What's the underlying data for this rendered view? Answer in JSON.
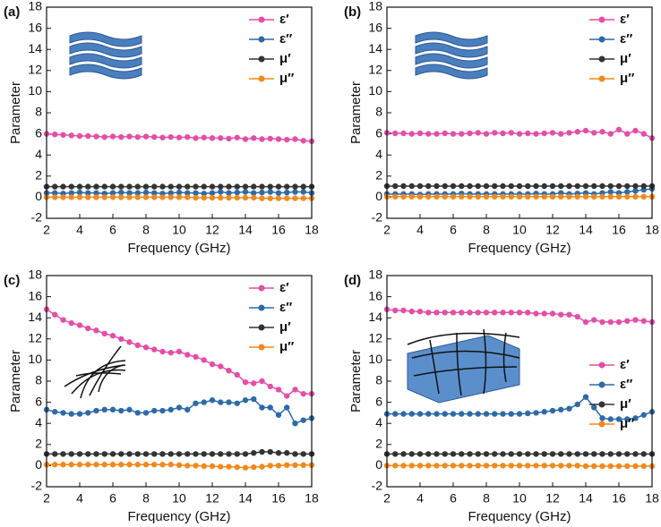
{
  "chart_data": [
    {
      "type": "line",
      "title": "(a)",
      "xlabel": "Frequency (GHz)",
      "ylabel": "Parameter",
      "xlim": [
        2,
        18
      ],
      "xticks": [
        2,
        4,
        6,
        8,
        10,
        12,
        14,
        16,
        18
      ],
      "ylim": [
        -2,
        18
      ],
      "yticks": [
        -2,
        0,
        2,
        4,
        6,
        8,
        10,
        12,
        14,
        16,
        18
      ],
      "legend": "upper right",
      "x": [
        2,
        2.5,
        3,
        3.5,
        4,
        4.5,
        5,
        5.5,
        6,
        6.5,
        7,
        7.5,
        8,
        8.5,
        9,
        9.5,
        10,
        10.5,
        11,
        11.5,
        12,
        12.5,
        13,
        13.5,
        14,
        14.5,
        15,
        15.5,
        16,
        16.5,
        17,
        17.5,
        18
      ],
      "series": [
        {
          "name": "ε′",
          "color": "#e24fa8",
          "values": [
            6.0,
            5.95,
            5.9,
            5.85,
            5.8,
            5.8,
            5.75,
            5.7,
            5.75,
            5.7,
            5.75,
            5.7,
            5.75,
            5.7,
            5.65,
            5.7,
            5.65,
            5.7,
            5.6,
            5.65,
            5.6,
            5.6,
            5.55,
            5.65,
            5.5,
            5.6,
            5.5,
            5.55,
            5.5,
            5.45,
            5.5,
            5.35,
            5.3
          ]
        },
        {
          "name": "ε″",
          "color": "#2e6aa6",
          "values": [
            0.4,
            0.4,
            0.35,
            0.4,
            0.45,
            0.4,
            0.4,
            0.35,
            0.4,
            0.45,
            0.4,
            0.4,
            0.45,
            0.4,
            0.35,
            0.4,
            0.45,
            0.4,
            0.4,
            0.35,
            0.4,
            0.5,
            0.4,
            0.45,
            0.5,
            0.4,
            0.45,
            0.5,
            0.4,
            0.45,
            0.5,
            0.5,
            0.4
          ]
        },
        {
          "name": "μ′",
          "color": "#333333",
          "values": [
            1.0,
            1.0,
            1.0,
            1.0,
            1.0,
            1.0,
            1.0,
            1.0,
            1.0,
            1.0,
            1.0,
            1.0,
            1.0,
            1.0,
            1.0,
            1.0,
            1.0,
            1.0,
            1.0,
            1.0,
            1.0,
            1.0,
            1.0,
            1.0,
            1.0,
            1.0,
            1.0,
            1.0,
            1.0,
            1.0,
            1.0,
            1.0,
            1.0
          ]
        },
        {
          "name": "μ″",
          "color": "#f08a1c",
          "values": [
            0,
            0,
            0,
            0,
            0,
            0,
            0,
            0,
            0,
            0,
            0,
            0,
            0,
            0,
            0,
            0,
            0,
            0,
            -0.05,
            -0.05,
            -0.05,
            -0.05,
            -0.05,
            -0.05,
            -0.05,
            -0.05,
            -0.1,
            -0.1,
            -0.1,
            -0.1,
            -0.1,
            -0.1,
            -0.1
          ]
        }
      ]
    },
    {
      "type": "line",
      "title": "(b)",
      "xlabel": "Frequency (GHz)",
      "ylabel": "Parameter",
      "xlim": [
        2,
        18
      ],
      "xticks": [
        2,
        4,
        6,
        8,
        10,
        12,
        14,
        16,
        18
      ],
      "ylim": [
        -2,
        18
      ],
      "yticks": [
        -2,
        0,
        2,
        4,
        6,
        8,
        10,
        12,
        14,
        16,
        18
      ],
      "legend": "upper right",
      "x": [
        2,
        2.5,
        3,
        3.5,
        4,
        4.5,
        5,
        5.5,
        6,
        6.5,
        7,
        7.5,
        8,
        8.5,
        9,
        9.5,
        10,
        10.5,
        11,
        11.5,
        12,
        12.5,
        13,
        13.5,
        14,
        14.5,
        15,
        15.5,
        16,
        16.5,
        17,
        17.5,
        18
      ],
      "series": [
        {
          "name": "ε′",
          "color": "#e24fa8",
          "values": [
            6.1,
            6.05,
            6.05,
            6.0,
            6.05,
            6.0,
            6.0,
            6.05,
            6.0,
            6.0,
            6.05,
            6.1,
            6.0,
            6.1,
            6.05,
            6.1,
            6.0,
            6.05,
            6.0,
            6.05,
            6.1,
            6.0,
            6.1,
            6.2,
            6.3,
            6.1,
            6.2,
            6.0,
            6.4,
            6.0,
            6.3,
            6.0,
            5.6
          ]
        },
        {
          "name": "ε″",
          "color": "#2e6aa6",
          "values": [
            0.3,
            0.3,
            0.3,
            0.3,
            0.25,
            0.3,
            0.3,
            0.3,
            0.3,
            0.35,
            0.3,
            0.3,
            0.3,
            0.3,
            0.3,
            0.3,
            0.3,
            0.3,
            0.35,
            0.3,
            0.3,
            0.4,
            0.3,
            0.35,
            0.4,
            0.3,
            0.4,
            0.5,
            0.4,
            0.5,
            0.6,
            0.7,
            0.8
          ]
        },
        {
          "name": "μ′",
          "color": "#333333",
          "values": [
            1.05,
            1.05,
            1.05,
            1.05,
            1.05,
            1.05,
            1.05,
            1.05,
            1.05,
            1.05,
            1.05,
            1.05,
            1.05,
            1.05,
            1.05,
            1.05,
            1.05,
            1.05,
            1.05,
            1.05,
            1.05,
            1.05,
            1.05,
            1.05,
            1.05,
            1.05,
            1.05,
            1.05,
            1.05,
            1.05,
            1.05,
            1.05,
            1.05
          ]
        },
        {
          "name": "μ″",
          "color": "#f08a1c",
          "values": [
            0.05,
            0.05,
            0.05,
            0.05,
            0.05,
            0.05,
            0.05,
            0.05,
            0.05,
            0.05,
            0.05,
            0.05,
            0.05,
            0.05,
            0.05,
            0.05,
            0.05,
            0.05,
            0.05,
            0.05,
            0.05,
            0.05,
            0.05,
            0.05,
            0.05,
            0.05,
            0.05,
            0.05,
            0.05,
            0.05,
            0.05,
            0.05,
            0.05
          ]
        }
      ]
    },
    {
      "type": "line",
      "title": "(c)",
      "xlabel": "Frequency (GHz)",
      "ylabel": "Parameter",
      "xlim": [
        2,
        18
      ],
      "xticks": [
        2,
        4,
        6,
        8,
        10,
        12,
        14,
        16,
        18
      ],
      "ylim": [
        -2,
        18
      ],
      "yticks": [
        -2,
        0,
        2,
        4,
        6,
        8,
        10,
        12,
        14,
        16,
        18
      ],
      "legend": "upper right",
      "x": [
        2,
        2.5,
        3,
        3.5,
        4,
        4.5,
        5,
        5.5,
        6,
        6.5,
        7,
        7.5,
        8,
        8.5,
        9,
        9.5,
        10,
        10.5,
        11,
        11.5,
        12,
        12.5,
        13,
        13.5,
        14,
        14.5,
        15,
        15.5,
        16,
        16.5,
        17,
        17.5,
        18
      ],
      "series": [
        {
          "name": "ε′",
          "color": "#e24fa8",
          "values": [
            14.8,
            14.3,
            13.8,
            13.5,
            13.3,
            13.0,
            12.8,
            12.5,
            12.3,
            12.0,
            11.7,
            11.4,
            11.2,
            11.0,
            10.8,
            10.7,
            10.8,
            10.5,
            10.3,
            10.0,
            9.6,
            9.4,
            9.0,
            8.6,
            7.9,
            7.8,
            8.0,
            7.5,
            7.2,
            6.6,
            7.2,
            6.8,
            6.8
          ]
        },
        {
          "name": "ε″",
          "color": "#2e6aa6",
          "values": [
            5.3,
            5.1,
            5.0,
            4.9,
            4.9,
            5.0,
            5.2,
            5.3,
            5.3,
            5.2,
            5.3,
            5.0,
            5.0,
            5.2,
            5.2,
            5.3,
            5.5,
            5.3,
            5.9,
            6.0,
            6.2,
            6.0,
            6.0,
            5.9,
            6.2,
            6.3,
            5.5,
            5.5,
            4.8,
            5.5,
            4.0,
            4.3,
            4.5
          ]
        },
        {
          "name": "μ′",
          "color": "#333333",
          "values": [
            1.1,
            1.1,
            1.1,
            1.1,
            1.1,
            1.1,
            1.1,
            1.1,
            1.1,
            1.1,
            1.1,
            1.1,
            1.1,
            1.1,
            1.1,
            1.1,
            1.1,
            1.1,
            1.1,
            1.1,
            1.1,
            1.1,
            1.1,
            1.1,
            1.1,
            1.2,
            1.3,
            1.3,
            1.2,
            1.2,
            1.1,
            1.1,
            1.1
          ]
        },
        {
          "name": "μ″",
          "color": "#f08a1c",
          "values": [
            0.1,
            0.1,
            0.1,
            0.1,
            0.1,
            0.1,
            0.1,
            0.1,
            0.1,
            0.1,
            0.1,
            0.1,
            0.1,
            0.1,
            0.1,
            0.1,
            0.05,
            0,
            0,
            -0.05,
            -0.05,
            -0.1,
            -0.1,
            -0.15,
            -0.2,
            -0.15,
            -0.1,
            0,
            0,
            0.05,
            0.05,
            0.05,
            0.05
          ]
        }
      ]
    },
    {
      "type": "line",
      "title": "(d)",
      "xlabel": "Frequency (GHz)",
      "ylabel": "Parameter",
      "xlim": [
        2,
        18
      ],
      "xticks": [
        2,
        4,
        6,
        8,
        10,
        12,
        14,
        16,
        18
      ],
      "ylim": [
        -2,
        18
      ],
      "yticks": [
        -2,
        0,
        2,
        4,
        6,
        8,
        10,
        12,
        14,
        16,
        18
      ],
      "legend": "center right",
      "x": [
        2,
        2.5,
        3,
        3.5,
        4,
        4.5,
        5,
        5.5,
        6,
        6.5,
        7,
        7.5,
        8,
        8.5,
        9,
        9.5,
        10,
        10.5,
        11,
        11.5,
        12,
        12.5,
        13,
        13.5,
        14,
        14.5,
        15,
        15.5,
        16,
        16.5,
        17,
        17.5,
        18
      ],
      "series": [
        {
          "name": "ε′",
          "color": "#e24fa8",
          "values": [
            14.8,
            14.7,
            14.7,
            14.6,
            14.6,
            14.5,
            14.5,
            14.5,
            14.5,
            14.5,
            14.5,
            14.5,
            14.5,
            14.5,
            14.5,
            14.5,
            14.5,
            14.5,
            14.4,
            14.4,
            14.4,
            14.3,
            14.3,
            14.1,
            13.6,
            13.8,
            13.6,
            13.6,
            13.6,
            13.7,
            13.8,
            13.7,
            13.6
          ]
        },
        {
          "name": "ε″",
          "color": "#2e6aa6",
          "values": [
            4.9,
            4.9,
            4.9,
            4.9,
            4.9,
            4.9,
            4.9,
            4.9,
            4.9,
            4.9,
            4.9,
            4.9,
            4.9,
            4.9,
            4.9,
            4.9,
            4.9,
            4.95,
            5.0,
            5.1,
            5.2,
            5.3,
            5.4,
            5.8,
            6.5,
            5.5,
            4.5,
            4.4,
            4.4,
            4.4,
            4.5,
            4.8,
            5.1
          ]
        },
        {
          "name": "μ′",
          "color": "#333333",
          "values": [
            1.1,
            1.1,
            1.1,
            1.1,
            1.1,
            1.1,
            1.1,
            1.1,
            1.1,
            1.1,
            1.1,
            1.1,
            1.1,
            1.1,
            1.1,
            1.1,
            1.1,
            1.1,
            1.1,
            1.1,
            1.1,
            1.1,
            1.1,
            1.1,
            1.1,
            1.1,
            1.1,
            1.1,
            1.1,
            1.1,
            1.1,
            1.1,
            1.1
          ]
        },
        {
          "name": "μ″",
          "color": "#f08a1c",
          "values": [
            0,
            0,
            0,
            0,
            0,
            0,
            0,
            0,
            0,
            0,
            0,
            0,
            0,
            0,
            0,
            0,
            0,
            0,
            0,
            0,
            0,
            0,
            0,
            0,
            -0.05,
            -0.05,
            -0.05,
            -0.05,
            -0.05,
            -0.05,
            -0.05,
            -0.05,
            -0.05
          ]
        }
      ]
    }
  ]
}
